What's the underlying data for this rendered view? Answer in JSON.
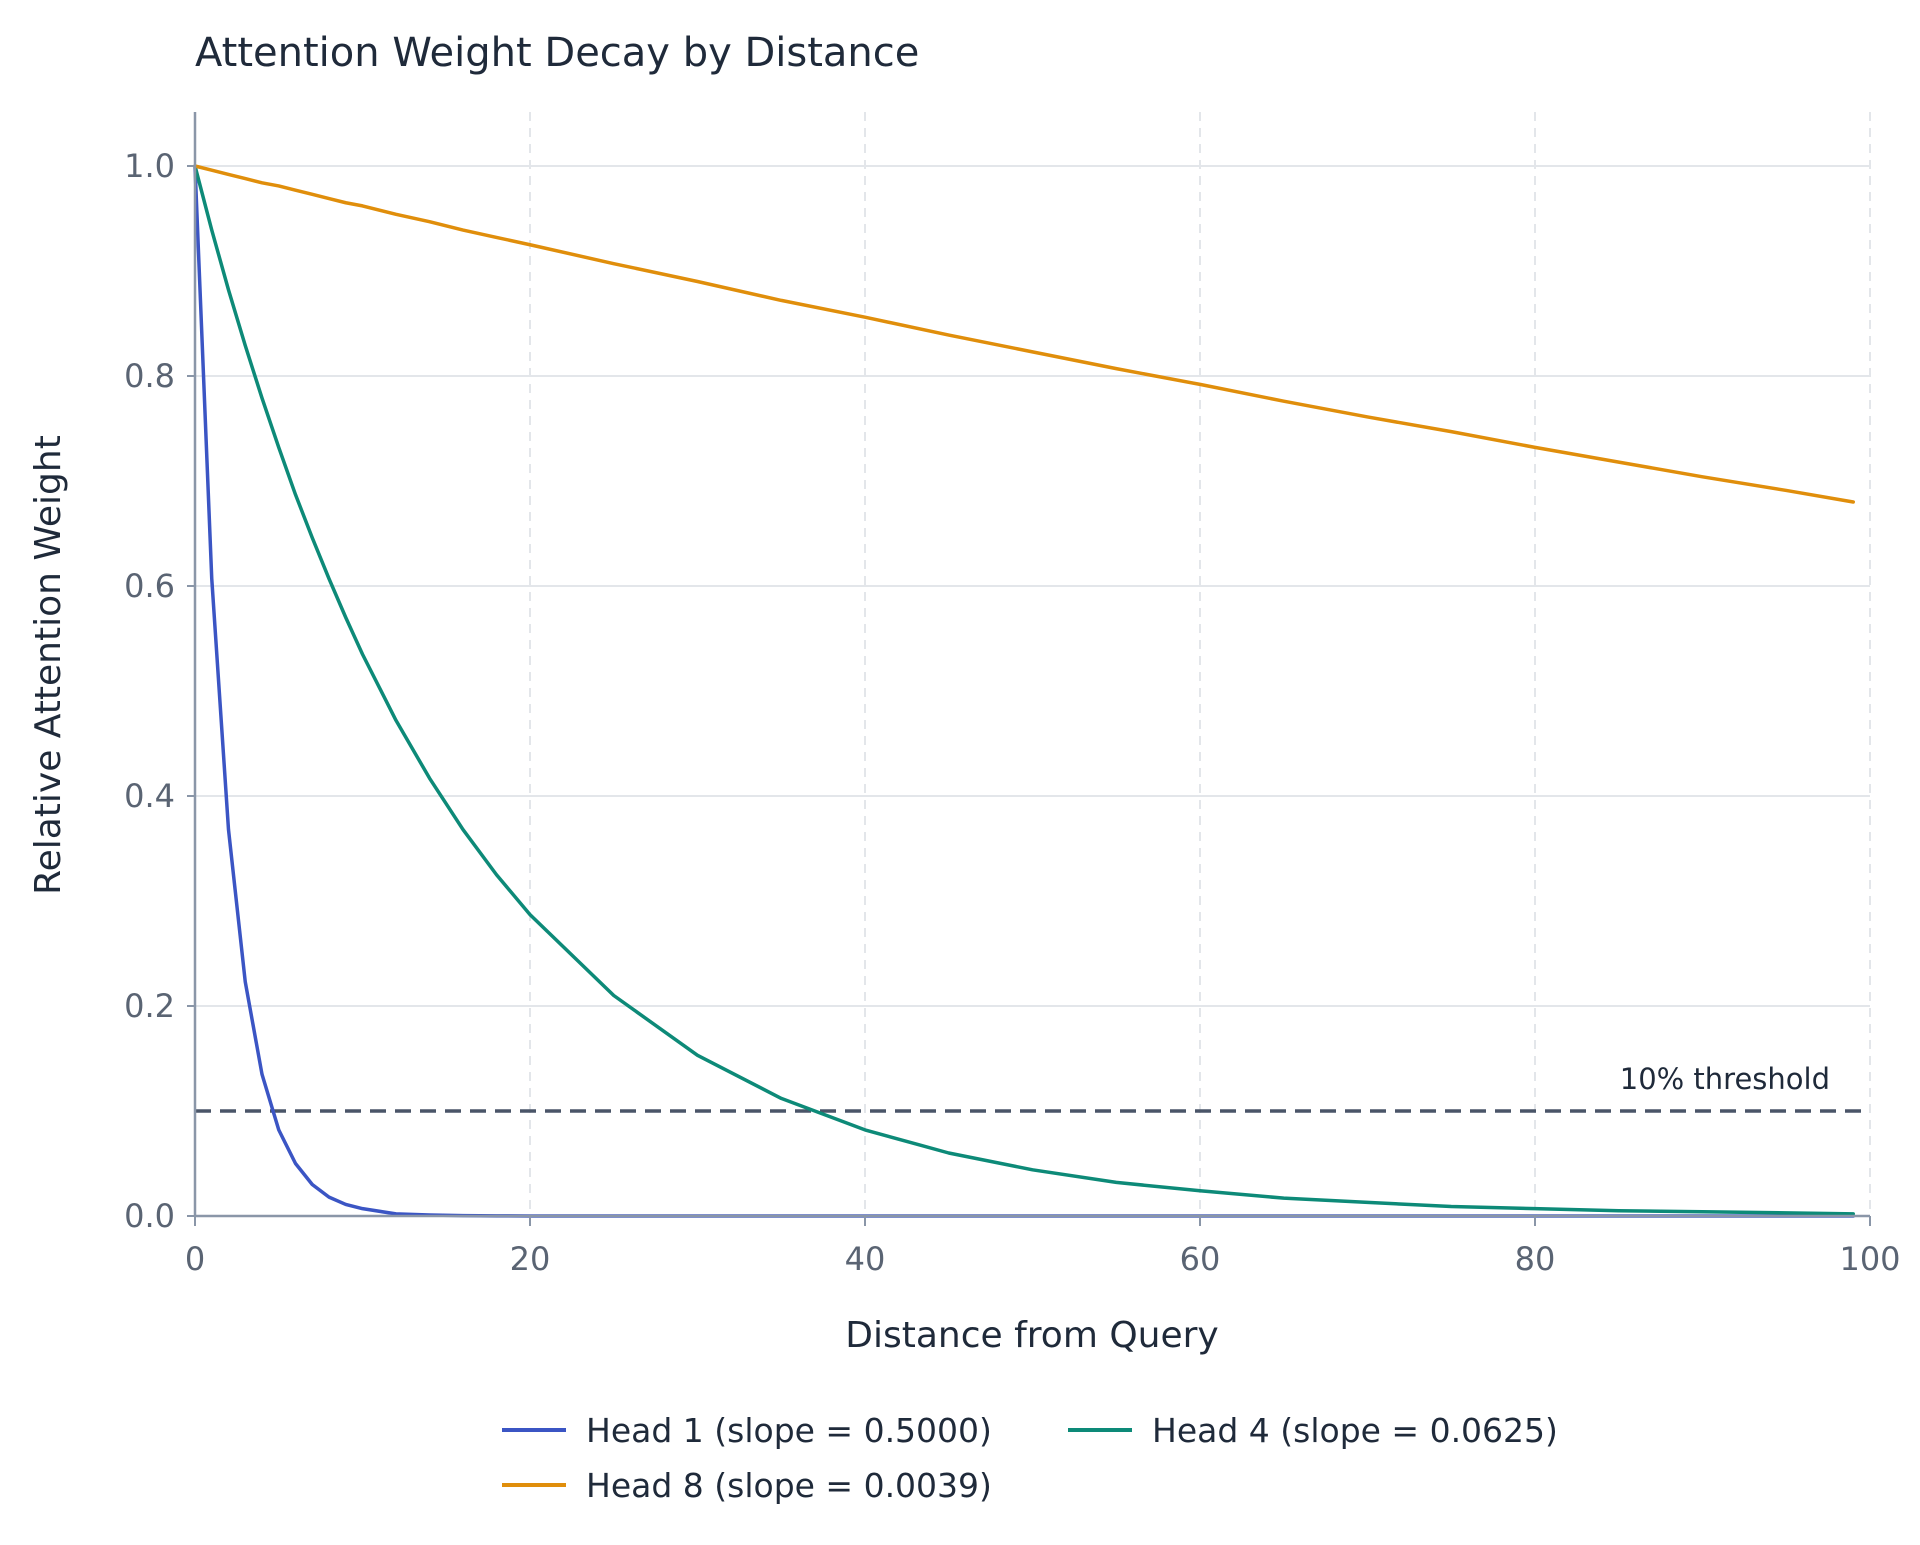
{
  "chart_data": {
    "type": "line",
    "title": "Attention Weight Decay by Distance",
    "xlabel": "Distance from Query",
    "ylabel": "Relative Attention Weight",
    "xlim": [
      0,
      100
    ],
    "ylim": [
      0,
      1.05
    ],
    "x_ticks": [
      0,
      20,
      40,
      60,
      80,
      100
    ],
    "x_tick_labels": [
      "0",
      "20",
      "40",
      "60",
      "80",
      "100"
    ],
    "y_ticks": [
      0,
      0.2,
      0.4,
      0.6,
      0.8,
      1.0
    ],
    "y_tick_labels": [
      "0.0",
      "0.2",
      "0.4",
      "0.6",
      "0.8",
      "1.0"
    ],
    "grid": true,
    "legend_position": "bottom-center",
    "x": [
      0,
      1,
      2,
      3,
      4,
      5,
      6,
      7,
      8,
      9,
      10,
      12,
      14,
      16,
      18,
      20,
      25,
      30,
      35,
      40,
      45,
      50,
      55,
      60,
      65,
      70,
      75,
      80,
      85,
      90,
      95,
      99
    ],
    "series": [
      {
        "name": "Head 1 (slope = 0.5000)",
        "color": "#3b55c4",
        "values": [
          1.0,
          0.607,
          0.368,
          0.223,
          0.135,
          0.082,
          0.05,
          0.03,
          0.018,
          0.011,
          0.007,
          0.002,
          0.001,
          0.0003,
          0.0001,
          0.0,
          0.0,
          0.0,
          0.0,
          0.0,
          0.0,
          0.0,
          0.0,
          0.0,
          0.0,
          0.0,
          0.0,
          0.0,
          0.0,
          0.0,
          0.0,
          0.0
        ]
      },
      {
        "name": "Head 4 (slope = 0.0625)",
        "color": "#0d8a78",
        "values": [
          1.0,
          0.939,
          0.882,
          0.829,
          0.779,
          0.732,
          0.687,
          0.646,
          0.607,
          0.57,
          0.535,
          0.472,
          0.417,
          0.368,
          0.325,
          0.287,
          0.21,
          0.153,
          0.112,
          0.082,
          0.06,
          0.044,
          0.032,
          0.024,
          0.017,
          0.013,
          0.009,
          0.007,
          0.005,
          0.004,
          0.003,
          0.002
        ]
      },
      {
        "name": "Head 8 (slope = 0.0039)",
        "color": "#e08e0b",
        "values": [
          1.0,
          0.996,
          0.992,
          0.988,
          0.984,
          0.981,
          0.977,
          0.973,
          0.969,
          0.965,
          0.962,
          0.954,
          0.947,
          0.939,
          0.932,
          0.925,
          0.907,
          0.89,
          0.872,
          0.856,
          0.839,
          0.823,
          0.807,
          0.792,
          0.776,
          0.761,
          0.747,
          0.732,
          0.718,
          0.704,
          0.691,
          0.68
        ]
      }
    ],
    "threshold": {
      "value": 0.1,
      "label": "10% threshold",
      "color": "#4a5568"
    },
    "colors": {
      "grid": "#e3e6ea",
      "axis": "#8a96a8",
      "text": "#1f2a3a",
      "tick_text": "#5a6473"
    }
  }
}
